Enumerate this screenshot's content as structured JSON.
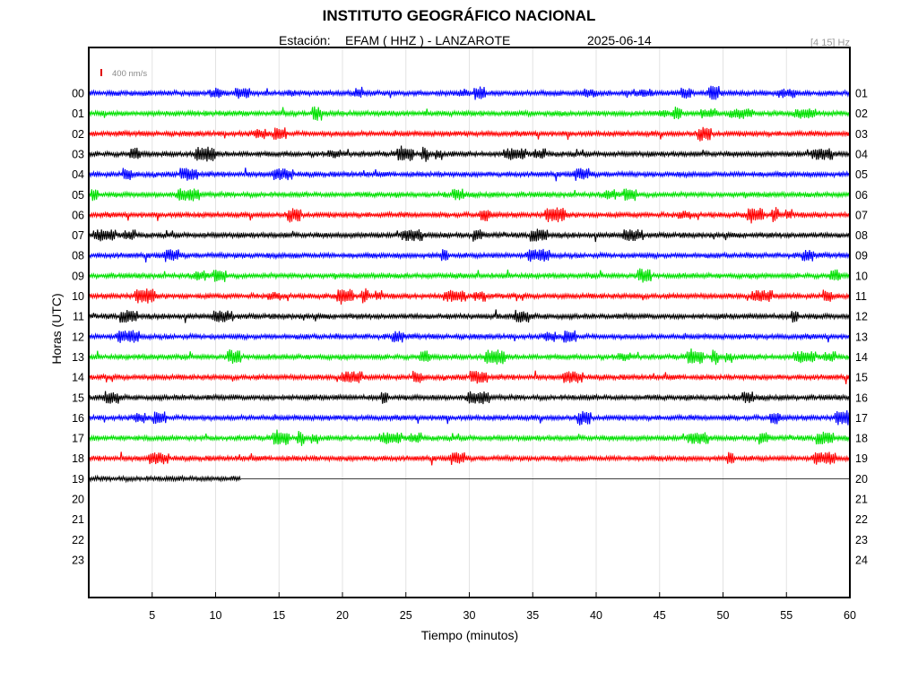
{
  "header": {
    "title": "INSTITUTO GEOGRÁFICO NACIONAL",
    "station_label": "Estación:",
    "station_value": "EFAM ( HHZ ) - LANZAROTE",
    "date": "2025-06-14",
    "band": "[4 15] Hz"
  },
  "scale": {
    "label": "400 nm/s",
    "color": "#e00000"
  },
  "chart_data": {
    "type": "helicorder",
    "title": "INSTITUTO GEOGRÁFICO NACIONAL",
    "xlabel": "Tiempo (minutos)",
    "ylabel": "Horas (UTC)",
    "xlim": [
      0,
      60
    ],
    "x_ticks": [
      "5",
      "10",
      "15",
      "20",
      "25",
      "30",
      "35",
      "40",
      "45",
      "50",
      "55",
      "60"
    ],
    "x_tick_values": [
      5,
      10,
      15,
      20,
      25,
      30,
      35,
      40,
      45,
      50,
      55,
      60
    ],
    "left_labels": [
      "00",
      "01",
      "02",
      "03",
      "04",
      "05",
      "06",
      "07",
      "08",
      "09",
      "10",
      "11",
      "12",
      "13",
      "14",
      "15",
      "16",
      "17",
      "18",
      "19",
      "20",
      "21",
      "22",
      "23"
    ],
    "right_labels": [
      "01",
      "02",
      "03",
      "04",
      "05",
      "06",
      "07",
      "08",
      "09",
      "10",
      "11",
      "12",
      "13",
      "14",
      "15",
      "16",
      "17",
      "18",
      "19",
      "20",
      "21",
      "22",
      "23",
      "24"
    ],
    "grid": "vertical",
    "trace_colors": [
      "#0000ff",
      "#00e000",
      "#ff0000",
      "#000000"
    ],
    "traces": [
      {
        "hour": "00",
        "color": "#0000ff",
        "recorded_minutes": 60
      },
      {
        "hour": "01",
        "color": "#00e000",
        "recorded_minutes": 60
      },
      {
        "hour": "02",
        "color": "#ff0000",
        "recorded_minutes": 60
      },
      {
        "hour": "03",
        "color": "#000000",
        "recorded_minutes": 60
      },
      {
        "hour": "04",
        "color": "#0000ff",
        "recorded_minutes": 60
      },
      {
        "hour": "05",
        "color": "#00e000",
        "recorded_minutes": 60
      },
      {
        "hour": "06",
        "color": "#ff0000",
        "recorded_minutes": 60
      },
      {
        "hour": "07",
        "color": "#000000",
        "recorded_minutes": 60
      },
      {
        "hour": "08",
        "color": "#0000ff",
        "recorded_minutes": 60
      },
      {
        "hour": "09",
        "color": "#00e000",
        "recorded_minutes": 60
      },
      {
        "hour": "10",
        "color": "#ff0000",
        "recorded_minutes": 60
      },
      {
        "hour": "11",
        "color": "#000000",
        "recorded_minutes": 60
      },
      {
        "hour": "12",
        "color": "#0000ff",
        "recorded_minutes": 60
      },
      {
        "hour": "13",
        "color": "#00e000",
        "recorded_minutes": 60
      },
      {
        "hour": "14",
        "color": "#ff0000",
        "recorded_minutes": 60
      },
      {
        "hour": "15",
        "color": "#000000",
        "recorded_minutes": 60
      },
      {
        "hour": "16",
        "color": "#0000ff",
        "recorded_minutes": 60
      },
      {
        "hour": "17",
        "color": "#00e000",
        "recorded_minutes": 60
      },
      {
        "hour": "18",
        "color": "#ff0000",
        "recorded_minutes": 60
      },
      {
        "hour": "19",
        "color": "#000000",
        "recorded_minutes": 12
      }
    ]
  }
}
